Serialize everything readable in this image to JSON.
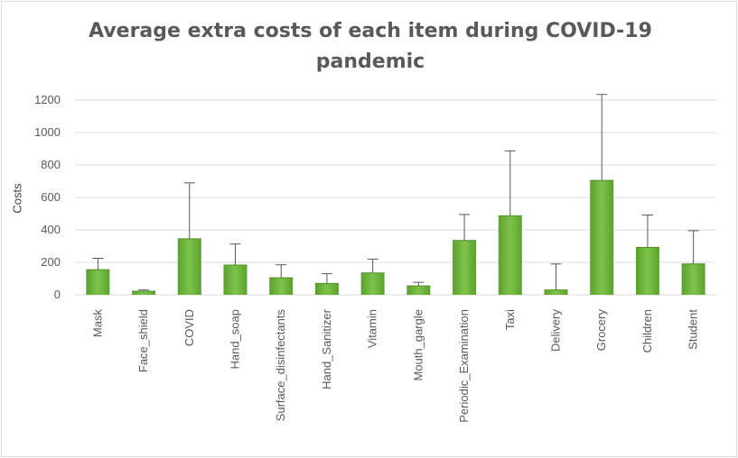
{
  "chart_data": {
    "type": "bar",
    "title": "Average extra costs of each item during COVID-19 pandemic",
    "ylabel": "Costs",
    "xlabel": "",
    "ylim": [
      0,
      1200
    ],
    "yticks": [
      0,
      200,
      400,
      600,
      800,
      1000,
      1200
    ],
    "grid": true,
    "error_bars": true,
    "categories": [
      "Mask",
      "Face_shield",
      "COVID",
      "Hand_soap",
      "Surface_disinfectants",
      "Hand_Sanitizer",
      "Vitamin",
      "Mouth_gargle",
      "Periodic_Examination",
      "Taxi",
      "Delivery",
      "Grocery",
      "Children",
      "Student"
    ],
    "values": [
      155,
      22,
      345,
      183,
      105,
      70,
      135,
      55,
      335,
      487,
      30,
      705,
      292,
      190
    ],
    "errors": [
      70,
      8,
      345,
      130,
      80,
      60,
      85,
      22,
      160,
      400,
      160,
      530,
      200,
      205
    ],
    "colors": {
      "bar_light": "#7ec34c",
      "bar_dark": "#5aa22c",
      "error_bar": "#595959",
      "grid": "#d9d9d9"
    }
  }
}
